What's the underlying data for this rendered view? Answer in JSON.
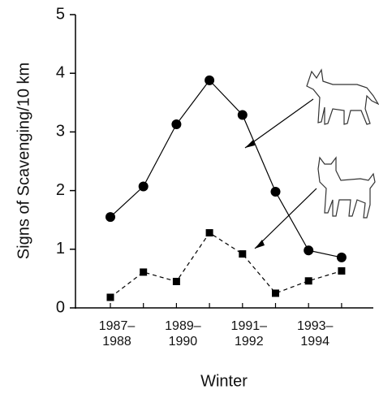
{
  "chart_data": {
    "type": "line",
    "y_label": "Signs of Scavenging/10 km",
    "x_label": "Winter",
    "categories": [
      "1987–\n1988",
      null,
      "1989–\n1990",
      null,
      "1991–\n1992",
      null,
      "1993–\n1994",
      null
    ],
    "series": [
      {
        "color": "#000000",
        "line_style": "solid",
        "marker": "circle",
        "values": [
          1.55,
          2.07,
          3.13,
          3.88,
          3.29,
          1.98,
          0.98,
          0.86
        ]
      },
      {
        "color": "#000000",
        "line_style": "dashed",
        "marker": "square",
        "values": [
          0.18,
          0.61,
          0.45,
          1.28,
          0.92,
          0.25,
          0.46,
          0.63
        ]
      }
    ],
    "ylim": [
      0,
      5
    ],
    "yticks": [
      0,
      1,
      2,
      3,
      4,
      5
    ],
    "grid": false
  }
}
